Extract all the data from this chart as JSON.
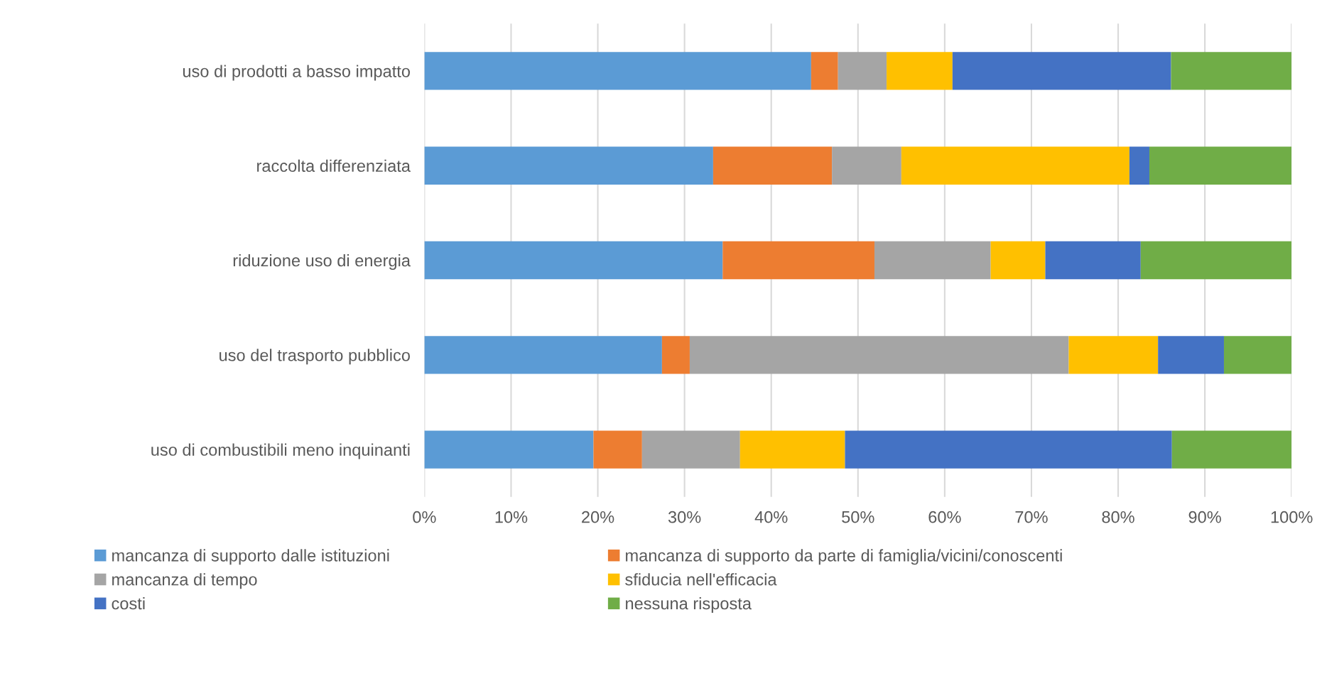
{
  "chart_data": {
    "type": "bar",
    "orientation": "horizontal",
    "stacked": true,
    "categories": [
      "uso di prodotti a basso impatto",
      "raccolta differenziata",
      "riduzione uso di energia",
      "uso del trasporto pubblico",
      "uso di combustibili meno inquinanti"
    ],
    "series": [
      {
        "name": "mancanza di supporto dalle istituzioni",
        "color": "#5b9bd5",
        "values": [
          44.6,
          33.3,
          34.4,
          27.4,
          19.5
        ]
      },
      {
        "name": "mancanza di supporto da parte di famiglia/vicini/conoscenti",
        "color": "#ed7d31",
        "values": [
          3.1,
          13.7,
          17.5,
          3.2,
          5.6
        ]
      },
      {
        "name": "mancanza di tempo",
        "color": "#a5a5a5",
        "values": [
          5.6,
          8.0,
          13.4,
          43.7,
          11.3
        ]
      },
      {
        "name": "sfiducia nell'efficacia",
        "color": "#ffc000",
        "values": [
          7.6,
          26.3,
          6.3,
          10.3,
          12.1
        ]
      },
      {
        "name": "costi",
        "color": "#4472c4",
        "values": [
          25.2,
          2.3,
          11.0,
          7.6,
          37.7
        ]
      },
      {
        "name": "nessuna risposta",
        "color": "#70ad47",
        "values": [
          13.9,
          16.4,
          17.4,
          7.8,
          13.8
        ]
      }
    ],
    "xlim": [
      0,
      100
    ],
    "xticks": [
      {
        "value": 0,
        "label": "0%"
      },
      {
        "value": 10,
        "label": "10%"
      },
      {
        "value": 20,
        "label": "20%"
      },
      {
        "value": 30,
        "label": "30%"
      },
      {
        "value": 40,
        "label": "40%"
      },
      {
        "value": 50,
        "label": "50%"
      },
      {
        "value": 60,
        "label": "60%"
      },
      {
        "value": 70,
        "label": "70%"
      },
      {
        "value": 80,
        "label": "80%"
      },
      {
        "value": 90,
        "label": "90%"
      },
      {
        "value": 100,
        "label": "100%"
      }
    ],
    "grid": "x",
    "legend": "bottom"
  }
}
